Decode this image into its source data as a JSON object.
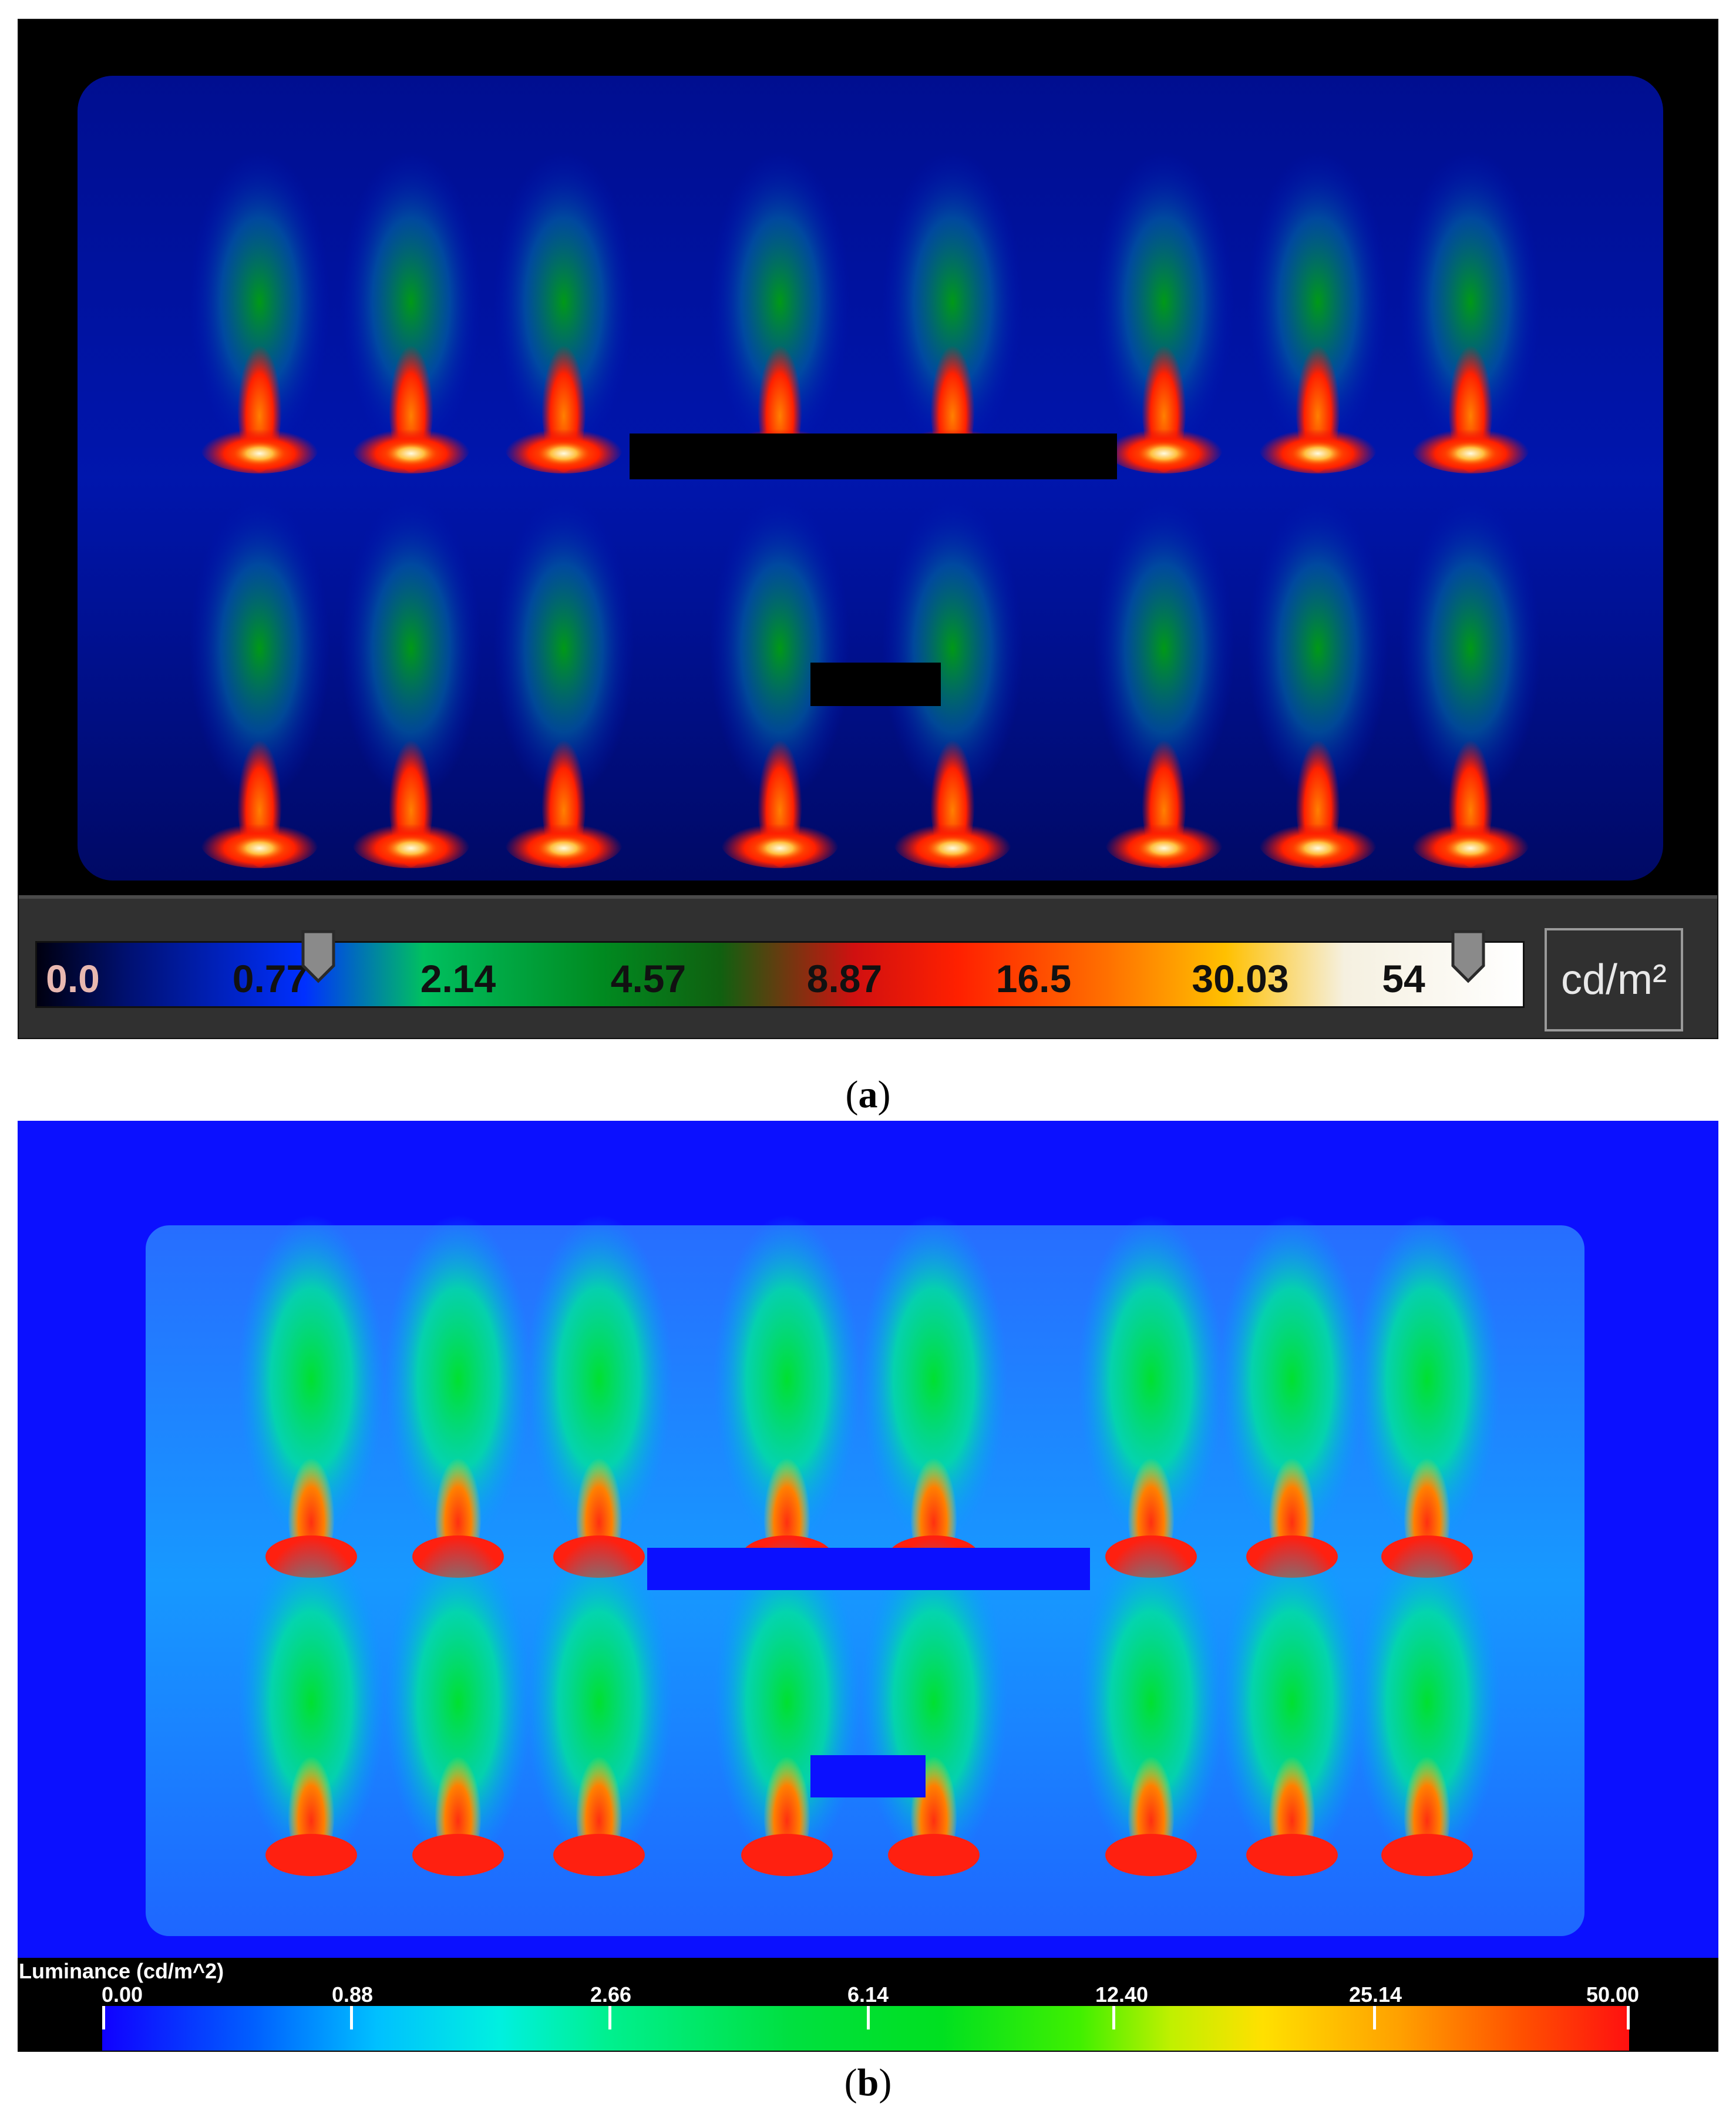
{
  "panel_a": {
    "caption_label": "a",
    "legend": {
      "ticks": [
        "0.0",
        "0.77",
        "2.14",
        "4.57",
        "8.87",
        "16.5",
        "30.03",
        "54"
      ],
      "unit": "cd/m²",
      "slider_low_value": 0.77,
      "slider_high_value": 54
    }
  },
  "panel_b": {
    "caption_label": "b",
    "legend": {
      "title": "Luminance (cd/m^2)",
      "ticks": [
        "0.00",
        "0.88",
        "2.66",
        "6.14",
        "12.40",
        "25.14",
        "50.00"
      ]
    }
  },
  "colors": {
    "panel_a_background": "#000000",
    "panel_b_background": "#0b10ff",
    "legend_a_background": "#303030",
    "legend_b_background": "#000000"
  },
  "icons": [
    "slider-handle-icon"
  ]
}
